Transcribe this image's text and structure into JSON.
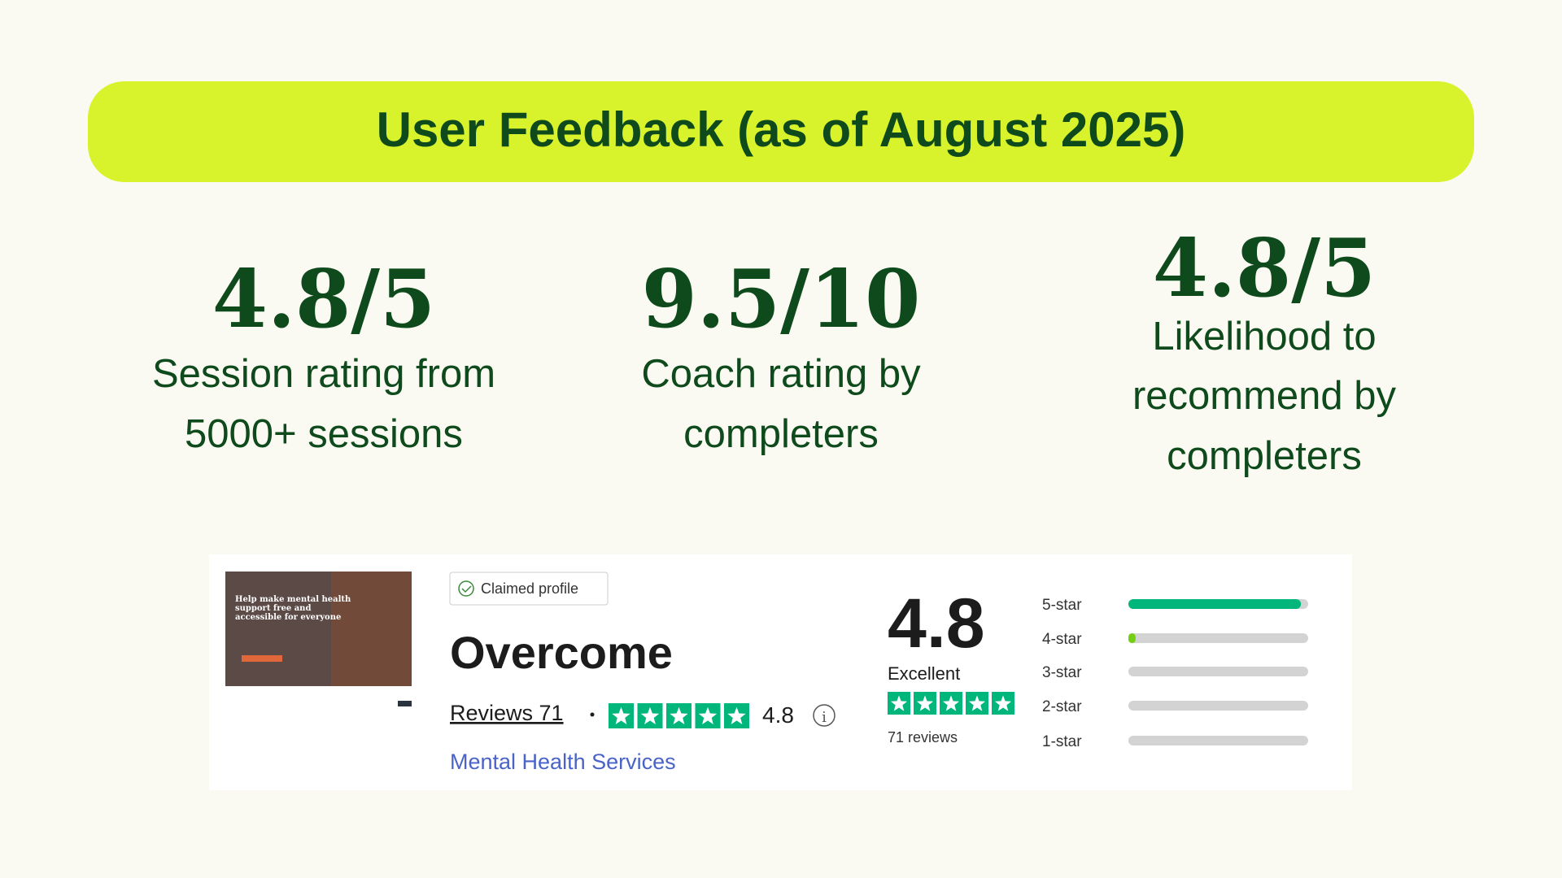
{
  "header": {
    "title": "User Feedback (as of August 2025)"
  },
  "stats": [
    {
      "value": "4.8/5",
      "label_lines": [
        "Session rating from",
        "5000+ sessions"
      ]
    },
    {
      "value": "9.5/10",
      "label_lines": [
        "Coach rating by",
        "completers"
      ]
    },
    {
      "value": "4.8/5",
      "label_lines": [
        "Likelihood to",
        "recommend by",
        "completers"
      ]
    }
  ],
  "review_widget": {
    "thumbnail_text": "Help make mental health support free and accessible for everyone",
    "claimed_label": "Claimed profile",
    "company_name": "Overcome",
    "reviews_label": "Reviews 71",
    "rating": "4.8",
    "category": "Mental Health Services",
    "score": "4.8",
    "score_label": "Excellent",
    "review_count": "71 reviews",
    "distribution": [
      {
        "label": "5-star",
        "percent": 96
      },
      {
        "label": "4-star",
        "percent": 4
      },
      {
        "label": "3-star",
        "percent": 0
      },
      {
        "label": "2-star",
        "percent": 0
      },
      {
        "label": "1-star",
        "percent": 0
      }
    ]
  }
}
